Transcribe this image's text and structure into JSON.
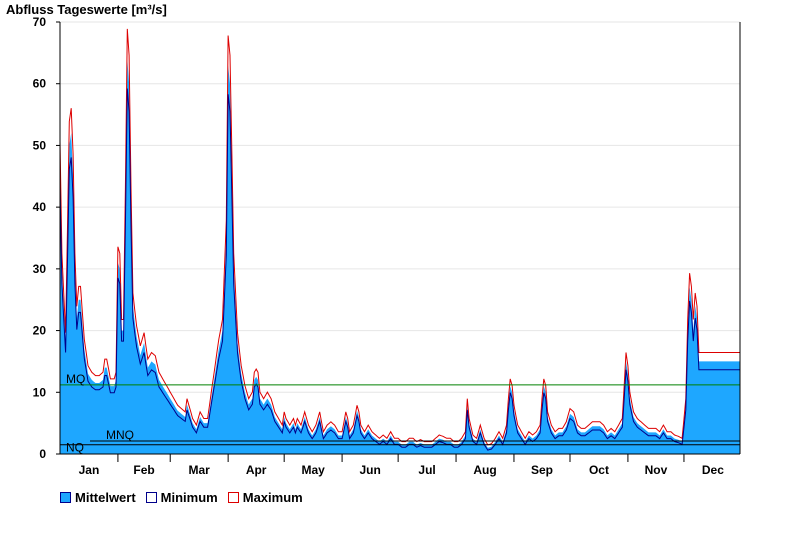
{
  "chart_data": {
    "type": "area",
    "title": "Abfluss Tageswerte [m³/s]",
    "ylim": [
      0,
      70
    ],
    "yticks": [
      0,
      10,
      20,
      30,
      40,
      50,
      60,
      70
    ],
    "months": [
      "Jan",
      "Feb",
      "Mar",
      "Apr",
      "May",
      "Jun",
      "Jul",
      "Aug",
      "Sep",
      "Oct",
      "Nov",
      "Dec"
    ],
    "grid": "horizontal",
    "reference_lines": [
      {
        "label": "MQ",
        "value": 11.2,
        "color": "#008000"
      },
      {
        "label": "MNQ",
        "value": 2.1,
        "color": "#000000"
      },
      {
        "label": "NQ",
        "value": 1.5,
        "color": "#000000"
      }
    ],
    "series": [
      {
        "name": "Mittelwert",
        "color": "#1ea7ff"
      },
      {
        "name": "Minimum",
        "color": "#00008b"
      },
      {
        "name": "Maximum",
        "color": "#dd0000"
      }
    ],
    "mean_keypoints": [
      [
        1,
        47
      ],
      [
        2,
        30
      ],
      [
        4,
        18
      ],
      [
        6,
        50
      ],
      [
        7,
        52
      ],
      [
        8,
        45
      ],
      [
        9,
        30
      ],
      [
        10,
        22
      ],
      [
        11,
        25
      ],
      [
        12,
        25
      ],
      [
        14,
        17
      ],
      [
        16,
        13
      ],
      [
        18,
        12
      ],
      [
        20,
        11.5
      ],
      [
        22,
        11.5
      ],
      [
        24,
        12
      ],
      [
        25,
        14
      ],
      [
        26,
        14
      ],
      [
        28,
        11
      ],
      [
        30,
        11
      ],
      [
        31,
        12
      ],
      [
        32,
        31
      ],
      [
        33,
        30
      ],
      [
        34,
        20
      ],
      [
        35,
        20
      ],
      [
        36,
        40
      ],
      [
        37,
        64
      ],
      [
        38,
        60
      ],
      [
        39,
        40
      ],
      [
        40,
        24
      ],
      [
        42,
        19
      ],
      [
        44,
        16
      ],
      [
        46,
        18
      ],
      [
        48,
        14
      ],
      [
        50,
        15
      ],
      [
        52,
        14.5
      ],
      [
        54,
        12
      ],
      [
        56,
        11
      ],
      [
        58,
        10
      ],
      [
        60,
        9
      ],
      [
        62,
        8
      ],
      [
        64,
        7
      ],
      [
        66,
        6.5
      ],
      [
        68,
        6
      ],
      [
        69,
        8
      ],
      [
        70,
        7
      ],
      [
        72,
        5
      ],
      [
        74,
        4
      ],
      [
        76,
        6
      ],
      [
        78,
        5
      ],
      [
        80,
        5
      ],
      [
        82,
        9
      ],
      [
        84,
        13
      ],
      [
        86,
        17
      ],
      [
        88,
        20
      ],
      [
        90,
        35
      ],
      [
        91,
        63
      ],
      [
        92,
        60
      ],
      [
        93,
        45
      ],
      [
        94,
        30
      ],
      [
        96,
        18
      ],
      [
        98,
        13
      ],
      [
        100,
        10
      ],
      [
        102,
        8
      ],
      [
        104,
        9
      ],
      [
        105,
        12
      ],
      [
        106,
        12.5
      ],
      [
        107,
        12
      ],
      [
        108,
        9
      ],
      [
        110,
        8
      ],
      [
        112,
        9
      ],
      [
        114,
        8
      ],
      [
        116,
        6
      ],
      [
        118,
        5
      ],
      [
        120,
        4
      ],
      [
        121,
        6
      ],
      [
        122,
        5
      ],
      [
        124,
        4
      ],
      [
        126,
        5
      ],
      [
        127,
        4
      ],
      [
        128,
        5
      ],
      [
        130,
        4
      ],
      [
        132,
        6
      ],
      [
        134,
        4
      ],
      [
        136,
        3
      ],
      [
        138,
        4
      ],
      [
        140,
        6
      ],
      [
        142,
        3
      ],
      [
        144,
        4
      ],
      [
        146,
        4.5
      ],
      [
        148,
        4
      ],
      [
        150,
        3
      ],
      [
        152,
        3
      ],
      [
        154,
        6
      ],
      [
        155,
        5
      ],
      [
        156,
        3
      ],
      [
        158,
        4
      ],
      [
        160,
        7
      ],
      [
        161,
        6
      ],
      [
        162,
        4
      ],
      [
        164,
        3
      ],
      [
        166,
        4
      ],
      [
        168,
        3
      ],
      [
        170,
        2.5
      ],
      [
        172,
        2
      ],
      [
        174,
        2.5
      ],
      [
        176,
        2
      ],
      [
        178,
        3
      ],
      [
        180,
        2
      ],
      [
        182,
        2
      ],
      [
        184,
        1.5
      ],
      [
        186,
        1.5
      ],
      [
        188,
        2
      ],
      [
        190,
        2
      ],
      [
        192,
        1.5
      ],
      [
        194,
        1.8
      ],
      [
        196,
        1.5
      ],
      [
        198,
        1.5
      ],
      [
        200,
        1.5
      ],
      [
        202,
        2
      ],
      [
        204,
        2.5
      ],
      [
        206,
        2.3
      ],
      [
        208,
        2
      ],
      [
        210,
        2
      ],
      [
        212,
        1.5
      ],
      [
        214,
        1.5
      ],
      [
        216,
        2
      ],
      [
        218,
        3
      ],
      [
        219,
        8
      ],
      [
        220,
        5
      ],
      [
        222,
        2.5
      ],
      [
        224,
        2
      ],
      [
        226,
        4
      ],
      [
        228,
        2
      ],
      [
        230,
        1
      ],
      [
        232,
        1.2
      ],
      [
        234,
        2
      ],
      [
        236,
        3
      ],
      [
        238,
        2
      ],
      [
        240,
        4
      ],
      [
        241,
        8
      ],
      [
        242,
        11
      ],
      [
        243,
        10
      ],
      [
        244,
        7
      ],
      [
        246,
        4
      ],
      [
        248,
        3
      ],
      [
        250,
        2
      ],
      [
        252,
        3
      ],
      [
        254,
        2.5
      ],
      [
        256,
        3
      ],
      [
        258,
        4
      ],
      [
        259,
        8
      ],
      [
        260,
        11
      ],
      [
        261,
        10
      ],
      [
        262,
        6
      ],
      [
        264,
        4
      ],
      [
        266,
        3
      ],
      [
        268,
        3.5
      ],
      [
        270,
        3.5
      ],
      [
        272,
        4.5
      ],
      [
        274,
        6.5
      ],
      [
        276,
        6
      ],
      [
        278,
        4
      ],
      [
        280,
        3.5
      ],
      [
        282,
        3.5
      ],
      [
        284,
        4
      ],
      [
        286,
        4.5
      ],
      [
        288,
        4.5
      ],
      [
        290,
        4.5
      ],
      [
        292,
        4
      ],
      [
        294,
        3
      ],
      [
        296,
        3.5
      ],
      [
        298,
        3
      ],
      [
        300,
        4
      ],
      [
        302,
        5
      ],
      [
        303,
        10
      ],
      [
        304,
        15
      ],
      [
        305,
        13
      ],
      [
        306,
        9
      ],
      [
        308,
        6
      ],
      [
        310,
        5
      ],
      [
        312,
        4.5
      ],
      [
        314,
        4
      ],
      [
        316,
        3.5
      ],
      [
        318,
        3.5
      ],
      [
        320,
        3.5
      ],
      [
        322,
        3
      ],
      [
        324,
        4
      ],
      [
        326,
        3
      ],
      [
        328,
        3
      ],
      [
        330,
        2.5
      ],
      [
        332,
        2.3
      ],
      [
        334,
        2
      ],
      [
        336,
        8
      ],
      [
        337,
        20
      ],
      [
        338,
        27
      ],
      [
        339,
        25
      ],
      [
        340,
        20
      ],
      [
        341,
        24
      ],
      [
        342,
        22
      ],
      [
        343,
        15
      ],
      [
        344,
        15
      ],
      [
        345,
        15
      ]
    ]
  },
  "legend": [
    {
      "label": "Mittelwert",
      "fill": "#1ea7ff",
      "border": "#00008b"
    },
    {
      "label": "Minimum",
      "fill": "#ffffff",
      "border": "#00008b"
    },
    {
      "label": "Maximum",
      "fill": "#ffffff",
      "border": "#dd0000"
    }
  ]
}
